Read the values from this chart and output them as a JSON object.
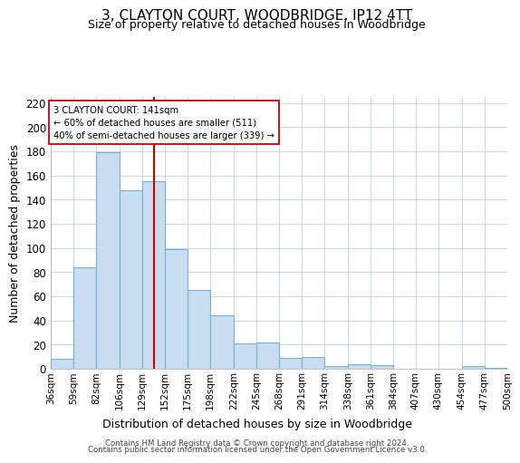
{
  "title": "3, CLAYTON COURT, WOODBRIDGE, IP12 4TT",
  "subtitle": "Size of property relative to detached houses in Woodbridge",
  "xlabel": "Distribution of detached houses by size in Woodbridge",
  "ylabel": "Number of detached properties",
  "bar_labels": [
    "36sqm",
    "59sqm",
    "82sqm",
    "106sqm",
    "129sqm",
    "152sqm",
    "175sqm",
    "198sqm",
    "222sqm",
    "245sqm",
    "268sqm",
    "291sqm",
    "314sqm",
    "338sqm",
    "361sqm",
    "384sqm",
    "407sqm",
    "430sqm",
    "454sqm",
    "477sqm",
    "500sqm"
  ],
  "bar_values": [
    8,
    84,
    179,
    148,
    155,
    99,
    65,
    44,
    21,
    22,
    9,
    10,
    2,
    4,
    3,
    0,
    0,
    0,
    2,
    1
  ],
  "bar_color": "#c8ddf0",
  "bar_edge_color": "#7ab0d4",
  "vline_x": 141,
  "vline_color": "#cc0000",
  "annotation_text": "3 CLAYTON COURT: 141sqm\n← 60% of detached houses are smaller (511)\n40% of semi-detached houses are larger (339) →",
  "annotation_box_color": "white",
  "annotation_box_edge": "#cc0000",
  "ylim": [
    0,
    225
  ],
  "yticks": [
    0,
    20,
    40,
    60,
    80,
    100,
    120,
    140,
    160,
    180,
    200,
    220
  ],
  "footer_line1": "Contains HM Land Registry data © Crown copyright and database right 2024.",
  "footer_line2": "Contains public sector information licensed under the Open Government Licence v3.0.",
  "bin_edges": [
    36,
    59,
    82,
    106,
    129,
    152,
    175,
    198,
    222,
    245,
    268,
    291,
    314,
    338,
    361,
    384,
    407,
    430,
    454,
    477,
    500
  ],
  "fig_width": 6.0,
  "fig_height": 5.0
}
